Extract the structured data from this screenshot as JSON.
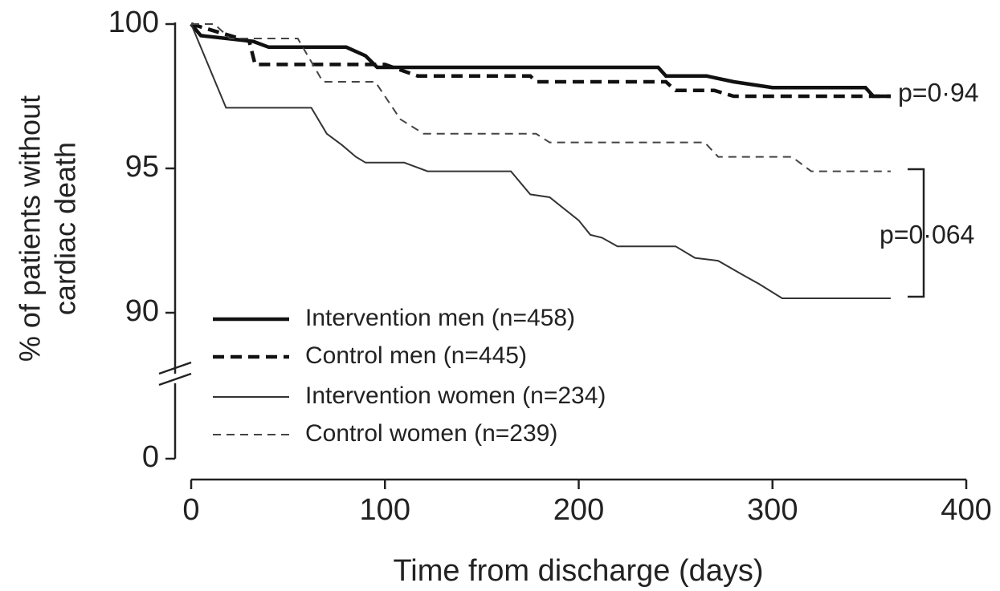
{
  "chart_data": {
    "type": "line",
    "step": true,
    "xlabel": "Time from discharge (days)",
    "ylabel": [
      "% of patients without",
      "cardiac death"
    ],
    "xlim": [
      0,
      400
    ],
    "xticks": [
      0,
      100,
      200,
      300,
      400
    ],
    "ylim": [
      0,
      100
    ],
    "yticks": [
      0,
      90,
      95,
      100
    ],
    "ybreak": [
      0,
      88
    ],
    "legend": "lower left",
    "annotations": [
      "p=0·94",
      "p=0·064"
    ],
    "series": [
      {
        "name": "Intervention men (n=458)",
        "color": "#111",
        "dashed": false,
        "bold": true,
        "x": [
          0,
          5,
          32,
          40,
          80,
          90,
          96,
          241,
          245,
          266,
          280,
          300,
          348,
          352,
          361
        ],
        "values": [
          100,
          99.6,
          99.4,
          99.2,
          99.2,
          98.9,
          98.5,
          98.5,
          98.2,
          98.2,
          98.0,
          97.8,
          97.8,
          97.5,
          97.5
        ]
      },
      {
        "name": "Control men (n=445)",
        "color": "#111",
        "dashed": true,
        "bold": true,
        "x": [
          0,
          30,
          33,
          100,
          117,
          175,
          178,
          245,
          250,
          270,
          280,
          361
        ],
        "values": [
          100,
          99.4,
          98.6,
          98.6,
          98.2,
          98.2,
          98.0,
          98.0,
          97.7,
          97.7,
          97.5,
          97.5
        ]
      },
      {
        "name": "Intervention women (n=234)",
        "color": "#333",
        "dashed": false,
        "bold": false,
        "x": [
          0,
          18,
          62,
          70,
          78,
          85,
          90,
          110,
          122,
          165,
          175,
          185,
          200,
          206,
          212,
          220,
          250,
          260,
          272,
          285,
          293,
          305,
          361
        ],
        "values": [
          100,
          97.1,
          97.1,
          96.2,
          95.8,
          95.4,
          95.2,
          95.2,
          94.9,
          94.9,
          94.1,
          94.0,
          93.2,
          92.7,
          92.6,
          92.3,
          92.3,
          91.9,
          91.8,
          91.3,
          91.0,
          90.5,
          90.5
        ]
      },
      {
        "name": "Control women (n=239)",
        "color": "#444",
        "dashed": true,
        "bold": false,
        "x": [
          0,
          12,
          20,
          55,
          68,
          95,
          100,
          108,
          120,
          178,
          185,
          265,
          272,
          310,
          320,
          361
        ],
        "values": [
          100,
          100,
          99.5,
          99.5,
          98.0,
          98.0,
          97.5,
          96.7,
          96.2,
          96.2,
          95.9,
          95.9,
          95.4,
          95.4,
          94.9,
          94.9
        ]
      }
    ]
  }
}
